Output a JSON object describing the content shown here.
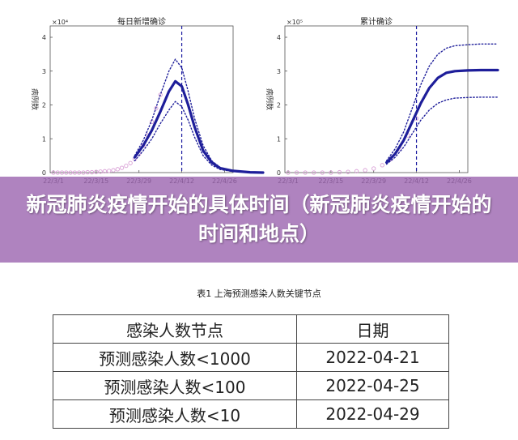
{
  "banner": {
    "text": "新冠肺炎疫情开始的具体时间（新冠肺炎疫情开始的时间和地点）",
    "background": "#9b64af"
  },
  "chart_data": [
    {
      "type": "line",
      "title": "每日新增确诊",
      "ylabel": "病例数",
      "y_multiplier": "×10⁴",
      "ylim": [
        0,
        4
      ],
      "y_ticks": [
        "0",
        "1",
        "2",
        "3",
        "4"
      ],
      "x_ticks": [
        "22/3/1",
        "22/3/15",
        "22/3/29",
        "22/4/12",
        "22/4/26"
      ],
      "vline_at_tick": 3,
      "series": [
        {
          "style": "observed-circles",
          "x": [
            0.0,
            0.1,
            0.2,
            0.3,
            0.4,
            0.5,
            0.6,
            0.7,
            0.8,
            0.9,
            1.0,
            1.1,
            1.2,
            1.3,
            1.4,
            1.5,
            1.6,
            1.7,
            1.8,
            1.9,
            2.0,
            2.1,
            2.2,
            2.3,
            2.4,
            2.5
          ],
          "y": [
            0,
            0,
            0,
            0,
            0,
            0,
            0,
            0,
            0.01,
            0.01,
            0.02,
            0.03,
            0.04,
            0.05,
            0.07,
            0.1,
            0.14,
            0.2,
            0.28,
            0.4,
            0.55,
            0.8,
            1.1,
            1.5,
            1.9,
            2.3
          ]
        },
        {
          "style": "fit-solid",
          "x": [
            1.9,
            2.1,
            2.3,
            2.5,
            2.7,
            2.85,
            3.0,
            3.15,
            3.3,
            3.5,
            3.7,
            3.9,
            4.2,
            4.6,
            4.9
          ],
          "y": [
            0.45,
            0.8,
            1.25,
            1.8,
            2.4,
            2.7,
            2.55,
            2.0,
            1.35,
            0.65,
            0.3,
            0.13,
            0.05,
            0.01,
            0.0
          ]
        },
        {
          "style": "upper-dotted",
          "x": [
            1.9,
            2.1,
            2.3,
            2.5,
            2.7,
            2.85,
            3.0,
            3.15,
            3.3,
            3.5,
            3.7,
            3.9,
            4.2,
            4.6,
            4.9
          ],
          "y": [
            0.5,
            0.95,
            1.55,
            2.3,
            3.0,
            3.35,
            3.1,
            2.4,
            1.6,
            0.8,
            0.35,
            0.15,
            0.06,
            0.02,
            0.0
          ]
        },
        {
          "style": "lower-dotted",
          "x": [
            1.9,
            2.1,
            2.3,
            2.5,
            2.7,
            2.85,
            3.0,
            3.15,
            3.3,
            3.5,
            3.7,
            3.9,
            4.2,
            4.6,
            4.9
          ],
          "y": [
            0.35,
            0.65,
            1.0,
            1.45,
            1.85,
            2.1,
            1.95,
            1.55,
            1.05,
            0.5,
            0.22,
            0.09,
            0.03,
            0.01,
            0.0
          ]
        }
      ]
    },
    {
      "type": "line",
      "title": "累计确诊",
      "ylabel": "病例数",
      "y_multiplier": "×10⁵",
      "ylim": [
        0,
        4
      ],
      "y_ticks": [
        "0",
        "1",
        "2",
        "3",
        "4"
      ],
      "x_ticks": [
        "22/3/1",
        "22/3/15",
        "22/3/29",
        "22/4/12",
        "22/4/26"
      ],
      "vline_at_tick": 3,
      "series": [
        {
          "style": "observed-circles",
          "x": [
            0.0,
            0.2,
            0.4,
            0.6,
            0.8,
            1.0,
            1.2,
            1.4,
            1.6,
            1.8,
            2.0,
            2.2,
            2.4,
            2.6,
            2.8,
            3.0
          ],
          "y": [
            0,
            0,
            0,
            0,
            0,
            0,
            0.01,
            0.02,
            0.04,
            0.07,
            0.12,
            0.22,
            0.4,
            0.7,
            1.1,
            1.6
          ]
        },
        {
          "style": "fit-solid",
          "x": [
            2.3,
            2.5,
            2.7,
            2.9,
            3.1,
            3.3,
            3.5,
            3.7,
            3.9,
            4.2,
            4.5,
            4.9
          ],
          "y": [
            0.3,
            0.55,
            0.95,
            1.5,
            2.05,
            2.5,
            2.8,
            2.95,
            3.0,
            3.02,
            3.03,
            3.03
          ]
        },
        {
          "style": "upper-dotted",
          "x": [
            2.3,
            2.5,
            2.7,
            2.9,
            3.1,
            3.3,
            3.5,
            3.7,
            3.9,
            4.2,
            4.5,
            4.9
          ],
          "y": [
            0.35,
            0.7,
            1.2,
            1.9,
            2.6,
            3.15,
            3.5,
            3.68,
            3.75,
            3.78,
            3.8,
            3.8
          ]
        },
        {
          "style": "lower-dotted",
          "x": [
            2.3,
            2.5,
            2.7,
            2.9,
            3.1,
            3.3,
            3.5,
            3.7,
            3.9,
            4.2,
            4.5,
            4.9
          ],
          "y": [
            0.25,
            0.45,
            0.75,
            1.15,
            1.55,
            1.85,
            2.05,
            2.15,
            2.2,
            2.22,
            2.23,
            2.23
          ]
        }
      ]
    }
  ],
  "table": {
    "caption": "表1 上海预测感染人数关键节点",
    "headers": [
      "感染人数节点",
      "日期"
    ],
    "rows": [
      [
        "预测感染人数<1000",
        "2022-04-21"
      ],
      [
        "预测感染人数<100",
        "2022-04-25"
      ],
      [
        "预测感染人数<10",
        "2022-04-29"
      ]
    ]
  }
}
